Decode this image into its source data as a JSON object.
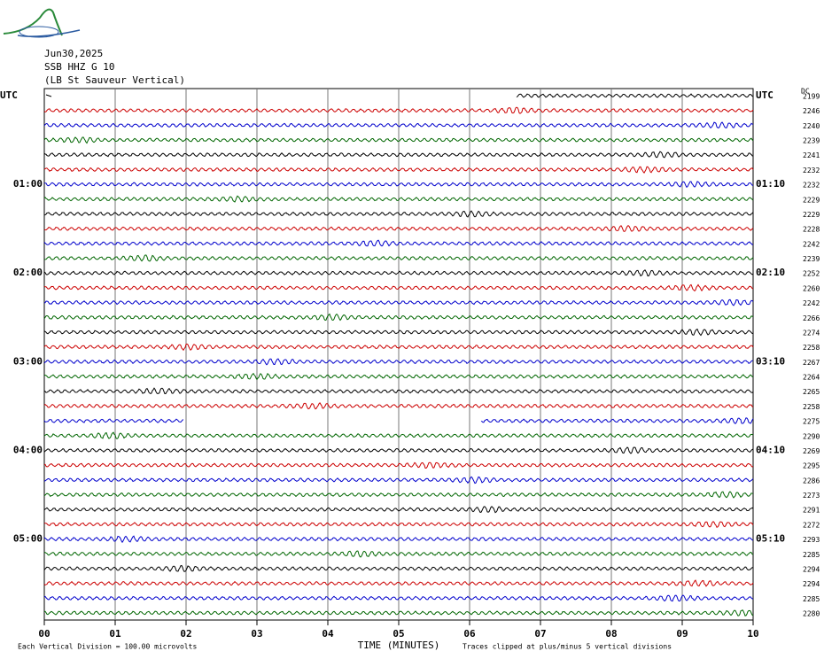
{
  "header": {
    "date": "Jun30,2025",
    "station": "SSB HHZ G 10",
    "location": "(LB  St Sauveur Vertical)"
  },
  "dc_header": "DC",
  "rows": [
    {
      "dc": "2199",
      "left": "UTC",
      "right": "UTC"
    },
    {
      "dc": "2246"
    },
    {
      "dc": "2240"
    },
    {
      "dc": "2239"
    },
    {
      "dc": "2241"
    },
    {
      "dc": "2232"
    },
    {
      "dc": "2232",
      "left": "01:00",
      "right": "01:10"
    },
    {
      "dc": "2229"
    },
    {
      "dc": "2229"
    },
    {
      "dc": "2228"
    },
    {
      "dc": "2242"
    },
    {
      "dc": "2239"
    },
    {
      "dc": "2252",
      "left": "02:00",
      "right": "02:10"
    },
    {
      "dc": "2260"
    },
    {
      "dc": "2242"
    },
    {
      "dc": "2266"
    },
    {
      "dc": "2274"
    },
    {
      "dc": "2258"
    },
    {
      "dc": "2267",
      "left": "03:00",
      "right": "03:10"
    },
    {
      "dc": "2264"
    },
    {
      "dc": "2265"
    },
    {
      "dc": "2258"
    },
    {
      "dc": "2275"
    },
    {
      "dc": "2290"
    },
    {
      "dc": "2269",
      "left": "04:00",
      "right": "04:10"
    },
    {
      "dc": "2295"
    },
    {
      "dc": "2286"
    },
    {
      "dc": "2273"
    },
    {
      "dc": "2291"
    },
    {
      "dc": "2272"
    },
    {
      "dc": "2293",
      "left": "05:00",
      "right": "05:10"
    },
    {
      "dc": "2285"
    },
    {
      "dc": "2294"
    },
    {
      "dc": "2294"
    },
    {
      "dc": "2285"
    },
    {
      "dc": "2280"
    }
  ],
  "x_axis": {
    "title": "TIME (MINUTES)",
    "ticks": [
      "00",
      "01",
      "02",
      "03",
      "04",
      "05",
      "06",
      "07",
      "08",
      "09",
      "10"
    ]
  },
  "footer": {
    "scale": "Each Vertical Division =  100.00 microvolts",
    "clip": "Traces clipped at plus/minus 5 vertical divisions"
  }
}
